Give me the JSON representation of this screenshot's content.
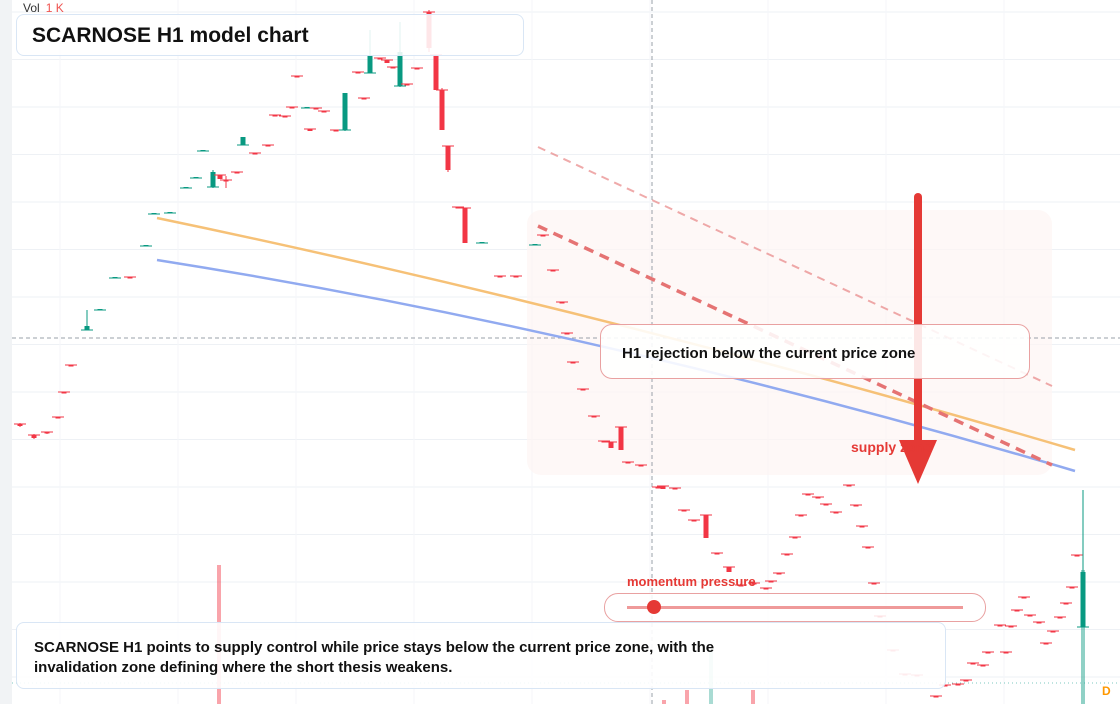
{
  "header": {
    "volume_label": "Vol",
    "volume_value": "1 K",
    "title": "SCARNOSE H1 model chart"
  },
  "annotations": {
    "zone_label": "H1 rejection below the current price zone",
    "supply_label": "supply zone",
    "momentum_label": "momentum pressure",
    "momentum_level": 0.08,
    "summary": "SCARNOSE H1 points to supply control while price stays below the current price zone, with the invalidation zone defining where the short thesis weakens.",
    "corner_badge": "D"
  },
  "colors": {
    "bull": "#089981",
    "bear": "#f23645",
    "moving_average_fast": "#f6c177",
    "moving_average_slow": "#91aaf0",
    "trend_line": "#e57373",
    "arrow": "#e53935",
    "accent": "#e53935"
  },
  "icons": {
    "arrow": "down-arrow-icon"
  }
}
